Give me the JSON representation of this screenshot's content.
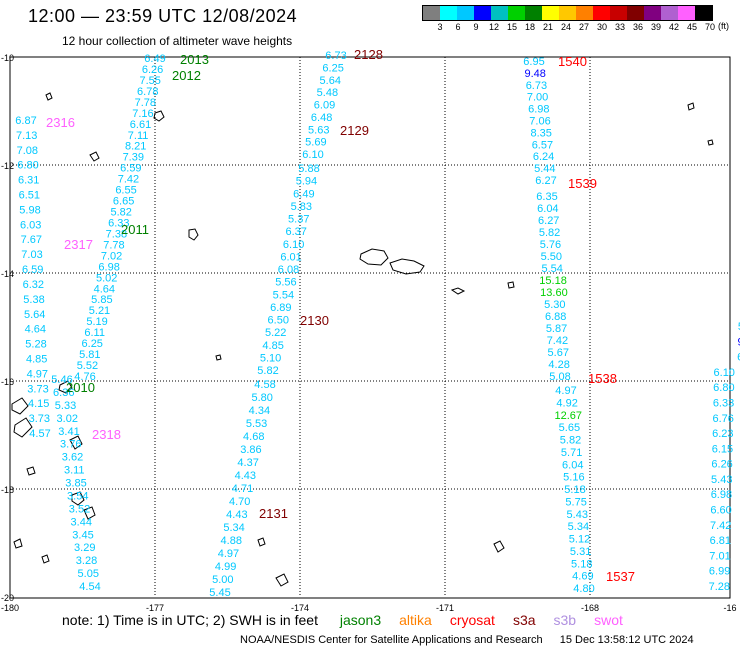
{
  "title": "12:00 — 23:59 UTC 12/08/2024",
  "subtitle": "12 hour collection of altimeter wave heights",
  "legend": {
    "colors": [
      "#7f7f7f",
      "#00ffff",
      "#00c8ff",
      "#0000ff",
      "#00c0c0",
      "#00d000",
      "#008000",
      "#ffff00",
      "#ffc800",
      "#ff8000",
      "#ff0000",
      "#c80000",
      "#800000",
      "#800080",
      "#b060d0",
      "#ff60ff",
      "#000000"
    ],
    "labels": [
      "3",
      "6",
      "9",
      "12",
      "15",
      "18",
      "21",
      "24",
      "27",
      "30",
      "33",
      "36",
      "39",
      "42",
      "45",
      "70"
    ],
    "unit": "(ft)"
  },
  "axes": {
    "x_ticks": [
      "-180",
      "-177",
      "-174",
      "-171",
      "-168",
      "-16"
    ],
    "y_ticks": [
      "-10",
      "-12",
      "-14",
      "-16",
      "-18",
      "-20"
    ]
  },
  "tracks": [
    {
      "id": "2013",
      "color": "#008000",
      "values": [
        "6.49",
        "6.26",
        "7.55",
        "6.78",
        "7.78",
        "7.16",
        "6.61",
        "7.11",
        "8.21",
        "7.39",
        "6.59",
        "7.42",
        "6.55",
        "6.65",
        "5.82",
        "6.33",
        "7.38",
        "7.78",
        "7.02",
        "6.98",
        "5.02",
        "4.64",
        "5.85",
        "5.21",
        "5.19",
        "6.11",
        "6.25",
        "5.81",
        "5.52",
        "4.76"
      ]
    },
    {
      "id": "2012",
      "color": "#008000",
      "values": []
    },
    {
      "id": "2011",
      "color": "#008000",
      "values": []
    },
    {
      "id": "2010",
      "color": "#008000",
      "values": [
        "5.46",
        "6.36",
        "5.33",
        "3.02",
        "3.41",
        "3.76",
        "3.62",
        "3.11",
        "3.85",
        "3.54",
        "3.52",
        "3.44",
        "3.45",
        "3.29",
        "3.28",
        "5.05",
        "4.54"
      ]
    },
    {
      "id": "2316",
      "color": "#ff60ff",
      "values": [
        "6.87",
        "7.13",
        "7.08",
        "6.80",
        "6.31",
        "6.51",
        "5.98",
        "6.03",
        "7.67",
        "7.03",
        "6.59",
        "6.32",
        "5.38",
        "5.64",
        "4.64",
        "5.28",
        "4.85",
        "4.97",
        "3.73",
        "4.15",
        "3.73",
        "4.57"
      ]
    },
    {
      "id": "2317",
      "color": "#ff60ff",
      "values": []
    },
    {
      "id": "2318",
      "color": "#ff60ff",
      "values": []
    },
    {
      "id": "2128",
      "color": "#800000",
      "values": [
        "6.73",
        "6.25",
        "5.64",
        "5.48",
        "6.09",
        "6.48",
        "5.63",
        "5.69",
        "6.10"
      ]
    },
    {
      "id": "2129",
      "color": "#800000",
      "values": [
        "5.88",
        "5.94",
        "6.49",
        "5.83",
        "5.37",
        "6.37",
        "6.10",
        "6.01",
        "6.08",
        "5.56",
        "5.54",
        "6.89",
        "6.50",
        "5.22",
        "4.85",
        "5.10",
        "5.82"
      ]
    },
    {
      "id": "2130",
      "color": "#800000",
      "values": [
        "4.58",
        "5.80",
        "4.34",
        "5.53",
        "4.68",
        "3.86",
        "4.37",
        "4.43",
        "4.71",
        "4.70",
        "4.43",
        "5.34",
        "4.88",
        "4.97",
        "4.99",
        "5.00",
        "5.45"
      ]
    },
    {
      "id": "2131",
      "color": "#800000",
      "values": []
    },
    {
      "id": "1540",
      "color": "#ff0000",
      "values": [
        "6.95",
        "9.48",
        "6.73",
        "7.00",
        "6.98",
        "7.06",
        "8.35",
        "6.57",
        "6.24",
        "5.44",
        "6.27"
      ]
    },
    {
      "id": "1539",
      "color": "#ff0000",
      "values": [
        "6.35",
        "6.04",
        "6.27",
        "5.82",
        "5.76",
        "5.50",
        "5.54",
        "15.18",
        "13.60",
        "5.30",
        "6.88",
        "5.87",
        "7.42",
        "5.67",
        "4.28",
        "5.08"
      ]
    },
    {
      "id": "1538",
      "color": "#ff0000",
      "values": [
        "4.97",
        "4.92",
        "12.67",
        "5.65",
        "5.82",
        "5.71",
        "6.04",
        "5.16",
        "5.18",
        "5.75",
        "5.43",
        "5.34",
        "5.12",
        "5.31",
        "5.18",
        "4.69",
        "4.80"
      ]
    },
    {
      "id": "1537",
      "color": "#ff0000",
      "values": []
    }
  ],
  "right_track": {
    "values": [
      "5",
      "9",
      "6",
      "6.10",
      "6.80",
      "6.33",
      "6.76",
      "6.23",
      "6.15",
      "6.26",
      "5.43",
      "6.98",
      "6.60",
      "7.42",
      "6.81",
      "7.01",
      "6.99",
      "7.28"
    ]
  },
  "note": {
    "text": "note:  1) Time is in UTC;  2) SWH is in feet",
    "missions": [
      {
        "name": "jason3",
        "color": "#008000"
      },
      {
        "name": "altika",
        "color": "#ff8000"
      },
      {
        "name": "cryosat",
        "color": "#ff0000"
      },
      {
        "name": "s3a",
        "color": "#800000"
      },
      {
        "name": "s3b",
        "color": "#b090e0"
      },
      {
        "name": "swot",
        "color": "#ff60ff"
      }
    ]
  },
  "credit": {
    "org": "NOAA/NESDIS Center for Satellite Applications and Research",
    "timestamp": "15 Dec 13:58:12 UTC 2024"
  }
}
